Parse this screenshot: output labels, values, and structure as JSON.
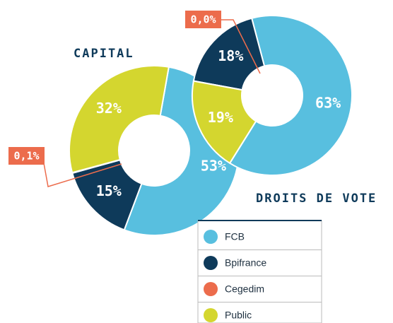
{
  "chart_data": [
    {
      "type": "donut",
      "title": "CAPITAL",
      "categories": [
        "FCB",
        "Bpifrance",
        "Cegedim",
        "Public"
      ],
      "values": [
        53,
        15,
        0.1,
        32
      ],
      "value_labels": [
        "53%",
        "15%",
        "0,1%",
        "32%"
      ],
      "colors": [
        "#58bfdf",
        "#0e3a5a",
        "#ec6c4c",
        "#d4d62f"
      ]
    },
    {
      "type": "donut",
      "title": "DROITS DE VOTE",
      "categories": [
        "FCB",
        "Bpifrance",
        "Cegedim",
        "Public"
      ],
      "values": [
        63,
        18,
        0.0,
        19
      ],
      "value_labels": [
        "63%",
        "18%",
        "0,0%",
        "19%"
      ],
      "colors": [
        "#58bfdf",
        "#0e3a5a",
        "#ec6c4c",
        "#d4d62f"
      ]
    }
  ]
}
